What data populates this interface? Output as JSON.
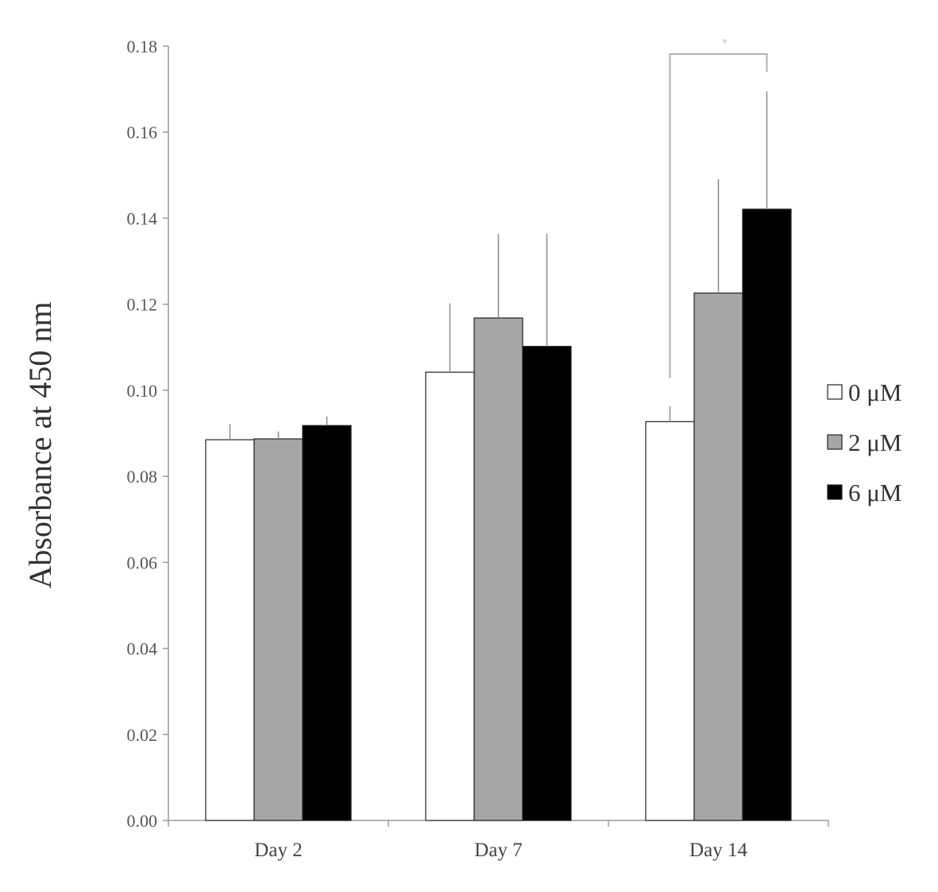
{
  "chart_data": {
    "type": "bar",
    "ylabel": "Absorbance at 450 nm",
    "ylim": [
      0,
      0.18
    ],
    "yticks": [
      "0.00",
      "0.02",
      "0.04",
      "0.06",
      "0.08",
      "0.10",
      "0.12",
      "0.14",
      "0.16",
      "0.18"
    ],
    "categories": [
      "Day 2",
      "Day 7",
      "Day 14"
    ],
    "series": [
      {
        "name": "0 μM",
        "color": "#ffffff",
        "values": [
          0.0885,
          0.1042,
          0.0927
        ],
        "errors": [
          0.0037,
          0.016,
          0.0036
        ]
      },
      {
        "name": "2 μM",
        "color": "#a6a6a6",
        "values": [
          0.0887,
          0.1168,
          0.1226
        ],
        "errors": [
          0.0017,
          0.0195,
          0.0265
        ]
      },
      {
        "name": "6 μM",
        "color": "#000000",
        "values": [
          0.0918,
          0.1102,
          0.1421
        ],
        "errors": [
          0.0021,
          0.0262,
          0.0274
        ]
      }
    ],
    "legend_position": "right",
    "grid": false,
    "significance": {
      "category": "Day 14",
      "from_series": "0 μM",
      "to_series": "6 μM",
      "label": "*"
    }
  }
}
